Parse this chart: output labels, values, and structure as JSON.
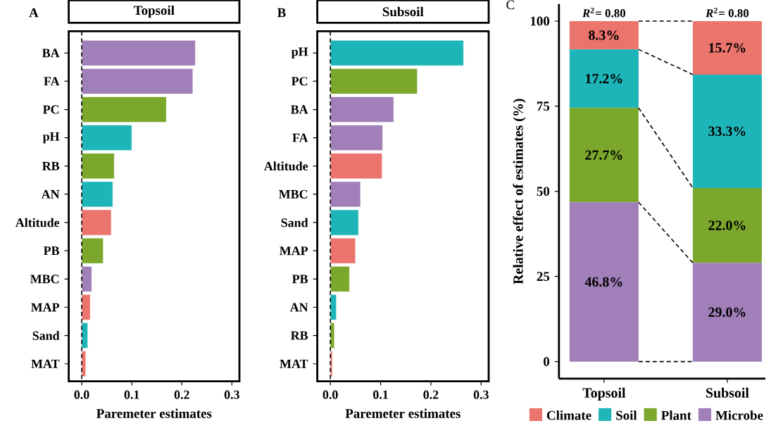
{
  "chart_data": [
    {
      "type": "bar",
      "orientation": "horizontal",
      "title": "Topsoil",
      "xlabel": "Paremeter estimates",
      "categories": [
        "BA",
        "FA",
        "PC",
        "pH",
        "RB",
        "AN",
        "Altitude",
        "PB",
        "MBC",
        "MAP",
        "Sand",
        "MAT"
      ],
      "values": [
        0.227,
        0.222,
        0.169,
        0.1,
        0.065,
        0.062,
        0.059,
        0.043,
        0.02,
        0.017,
        0.012,
        0.008
      ],
      "colors": [
        "#a17fb9",
        "#a17fb9",
        "#7aa72c",
        "#1eb5b8",
        "#7aa72c",
        "#1eb5b8",
        "#eb746c",
        "#7aa72c",
        "#a17fb9",
        "#eb746c",
        "#1eb5b8",
        "#eb746c"
      ],
      "xlim": [
        -0.026,
        0.315
      ],
      "xticks": [
        {
          "value": 0,
          "label": "0.0"
        },
        0.1,
        0.2,
        0.3
      ],
      "ref_lines": [
        {
          "axis": "x",
          "value": 0,
          "line_style": "dashed",
          "color": "#000000"
        }
      ],
      "annotations": [
        "A"
      ]
    },
    {
      "type": "bar",
      "orientation": "horizontal",
      "title": "Subsoil",
      "xlabel": "Paremeter estimates",
      "categories": [
        "pH",
        "PC",
        "BA",
        "FA",
        "Altitude",
        "MBC",
        "Sand",
        "MAP",
        "PB",
        "AN",
        "RB",
        "MAT"
      ],
      "values": [
        0.265,
        0.173,
        0.126,
        0.104,
        0.103,
        0.06,
        0.056,
        0.05,
        0.038,
        0.012,
        0.008,
        0.004
      ],
      "colors": [
        "#1eb5b8",
        "#7aa72c",
        "#a17fb9",
        "#a17fb9",
        "#eb746c",
        "#a17fb9",
        "#1eb5b8",
        "#eb746c",
        "#7aa72c",
        "#1eb5b8",
        "#7aa72c",
        "#eb746c"
      ],
      "xlim": [
        -0.026,
        0.315
      ],
      "xticks": [
        {
          "value": 0,
          "label": "0.0"
        },
        0.1,
        0.2,
        0.3
      ],
      "ref_lines": [
        {
          "axis": "x",
          "value": 0,
          "line_style": "dashed",
          "color": "#000000"
        }
      ],
      "annotations": [
        "B"
      ]
    },
    {
      "type": "bar",
      "stacked": true,
      "ylabel": "Relative effect of estimates (%)",
      "categories": [
        "Topsoil",
        "Subsoil"
      ],
      "series": [
        {
          "name": "Microbe",
          "color": "#a17fb9",
          "values": [
            46.8,
            29.0
          ],
          "value_labels": [
            "46.8%",
            "29.0%"
          ]
        },
        {
          "name": "Plant",
          "color": "#7aa72c",
          "values": [
            27.7,
            22.0
          ],
          "value_labels": [
            "27.7%",
            "22.0%"
          ]
        },
        {
          "name": "Soil",
          "color": "#1eb5b8",
          "values": [
            17.2,
            33.3
          ],
          "value_labels": [
            "17.2%",
            "33.3%"
          ]
        },
        {
          "name": "Climate",
          "color": "#eb746c",
          "values": [
            8.3,
            15.7
          ],
          "value_labels": [
            "8.3%",
            "15.7%"
          ]
        }
      ],
      "ylim": [
        -5,
        105
      ],
      "yticks": [
        0,
        25,
        50,
        75,
        100
      ],
      "legend": "bottom",
      "annotations": [
        "C",
        {
          "text": "*R*$^{2}$= 0.80",
          "x": "Topsoil",
          "y": 100
        },
        {
          "text": "*R*$^{2}$= 0.80",
          "x": "Subsoil",
          "y": 100
        }
      ]
    }
  ]
}
